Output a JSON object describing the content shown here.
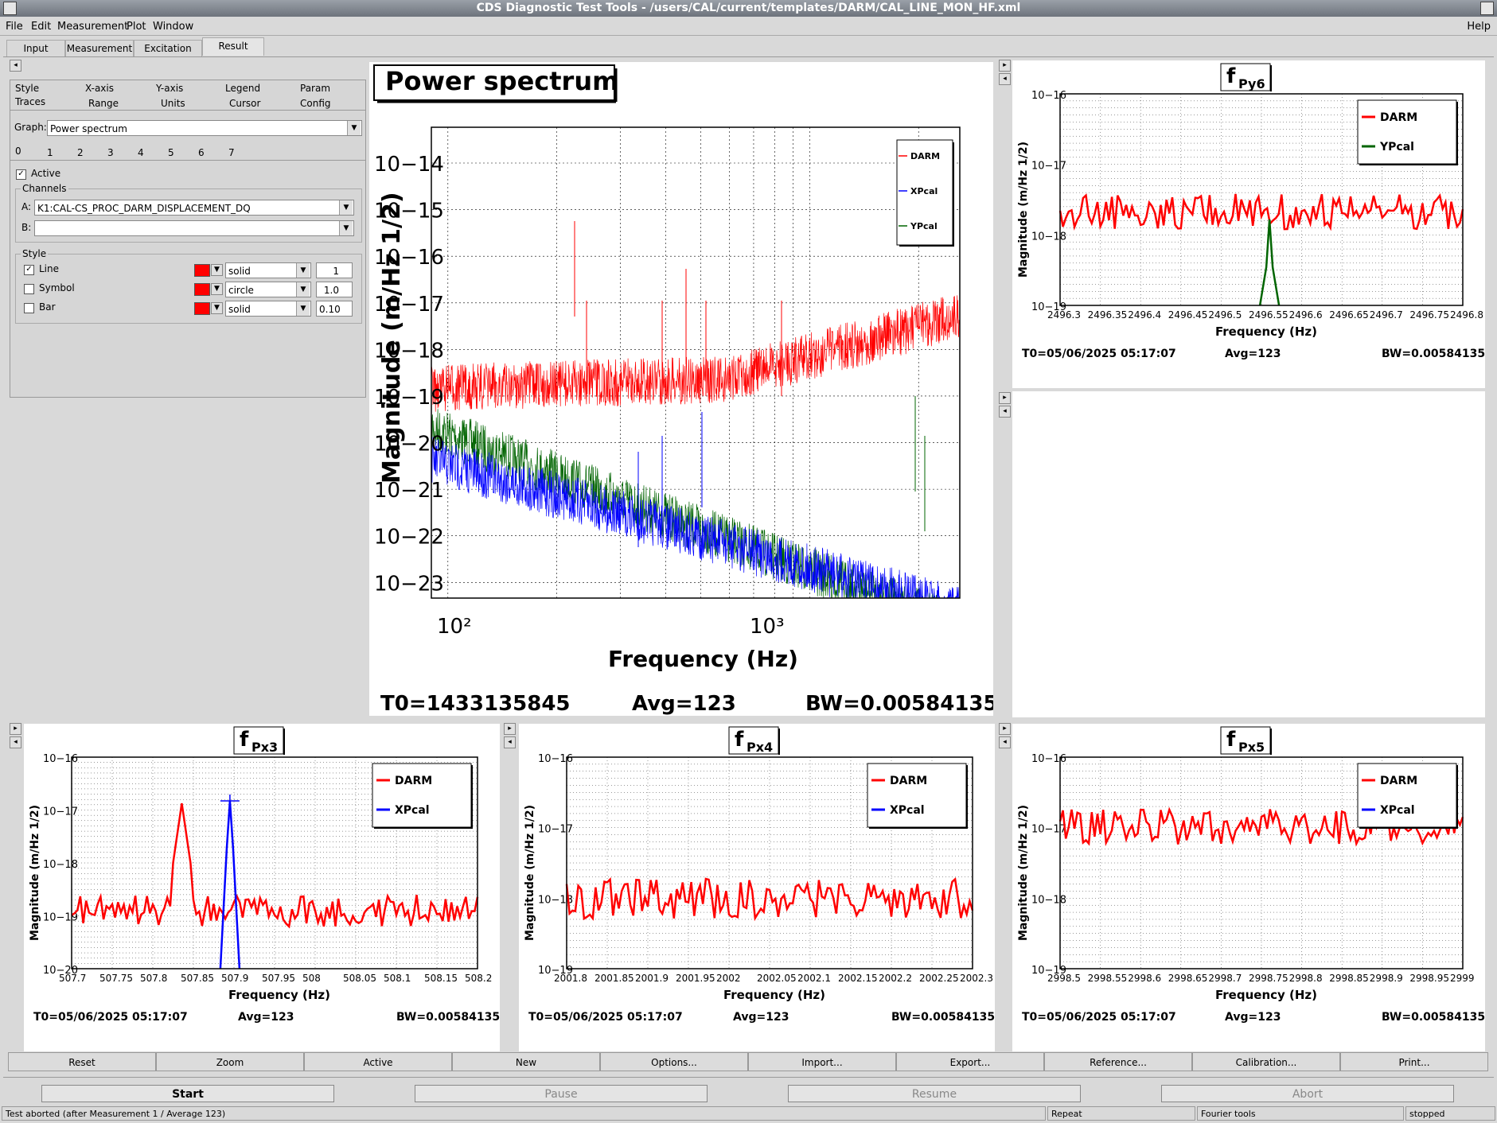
{
  "window": {
    "title": "CDS Diagnostic Test Tools - /users/CAL/current/templates/DARM/CAL_LINE_MON_HF.xml"
  },
  "menu": {
    "items": [
      "File",
      "Edit",
      "Measurement",
      "Plot",
      "Window"
    ],
    "help": "Help"
  },
  "tabs": [
    "Input",
    "Measurement",
    "Excitation",
    "Result"
  ],
  "active_tab": "Result",
  "options": {
    "tabs_row1": [
      "Style",
      "X-axis",
      "Y-axis",
      "Legend",
      "Param"
    ],
    "tabs_row2": [
      "Traces",
      "Range",
      "Units",
      "Cursor",
      "Config"
    ],
    "graph_label": "Graph:",
    "graph_value": "Power spectrum",
    "trace_tabs": [
      "0",
      "1",
      "2",
      "3",
      "4",
      "5",
      "6",
      "7"
    ],
    "active_label": "Active",
    "channels_label": "Channels",
    "channel_a_label": "A:",
    "channel_a": "K1:CAL-CS_PROC_DARM_DISPLACEMENT_DQ",
    "channel_b_label": "B:",
    "channel_b": "",
    "style_label": "Style",
    "rows": [
      {
        "name": "Line",
        "checked": true,
        "style": "solid",
        "value": "1"
      },
      {
        "name": "Symbol",
        "checked": false,
        "style": "circle",
        "value": "1.0"
      },
      {
        "name": "Bar",
        "checked": false,
        "style": "solid",
        "value": "0.10"
      }
    ]
  },
  "main_plot": {
    "title": "Power spectrum",
    "xlabel": "Frequency (Hz)",
    "ylabel": "Magnitude (m/Hz 1/2)",
    "yticks": [
      "10−14",
      "10−15",
      "10−16",
      "10−17",
      "10−18",
      "10−19",
      "10−20",
      "10−21",
      "10−22",
      "10−23"
    ],
    "xticks": [
      "10²",
      "10³"
    ],
    "legend": [
      "DARM",
      "XPcal",
      "YPcal"
    ],
    "t0": "T0=1433135845",
    "avg": "Avg=123",
    "bw": "BW=0.00584135"
  },
  "sub_plots": {
    "py6": {
      "title_main": "f",
      "title_sub": "Py6",
      "yticks": [
        "10−16",
        "10−17",
        "10−18",
        "10−19"
      ],
      "xticks": [
        "2496.3",
        "2496.35",
        "2496.4",
        "2496.45",
        "2496.5",
        "2496.55",
        "2496.6",
        "2496.65",
        "2496.7",
        "2496.75",
        "2496.8"
      ],
      "legend": [
        "DARM",
        "YPcal"
      ],
      "xlabel": "Frequency (Hz)",
      "ylabel": "Magnitude (m/Hz 1/2)",
      "t0": "T0=05/06/2025 05:17:07",
      "avg": "Avg=123",
      "bw": "BW=0.00584135"
    },
    "px3": {
      "title_main": "f",
      "title_sub": "Px3",
      "yticks": [
        "10−16",
        "10−17",
        "10−18",
        "10−19",
        "10−20"
      ],
      "xticks": [
        "507.7",
        "507.75",
        "507.8",
        "507.85",
        "507.9",
        "507.95",
        "508",
        "508.05",
        "508.1",
        "508.15",
        "508.2"
      ],
      "legend": [
        "DARM",
        "XPcal"
      ],
      "xlabel": "Frequency (Hz)",
      "ylabel": "Magnitude (m/Hz 1/2)",
      "t0": "T0=05/06/2025 05:17:07",
      "avg": "Avg=123",
      "bw": "BW=0.00584135"
    },
    "px4": {
      "title_main": "f",
      "title_sub": "Px4",
      "yticks": [
        "10−16",
        "10−17",
        "10−18",
        "10−19"
      ],
      "xticks": [
        "2001.8",
        "2001.85",
        "2001.9",
        "2001.95",
        "2002",
        "2002.05",
        "2002.1",
        "2002.15",
        "2002.2",
        "2002.25",
        "2002.3"
      ],
      "legend": [
        "DARM",
        "XPcal"
      ],
      "xlabel": "Frequency (Hz)",
      "ylabel": "Magnitude (m/Hz 1/2)",
      "t0": "T0=05/06/2025 05:17:07",
      "avg": "Avg=123",
      "bw": "BW=0.00584135"
    },
    "px5": {
      "title_main": "f",
      "title_sub": "Px5",
      "yticks": [
        "10−16",
        "10−17",
        "10−18",
        "10−19"
      ],
      "xticks": [
        "2998.5",
        "2998.55",
        "2998.6",
        "2998.65",
        "2998.7",
        "2998.75",
        "2998.8",
        "2998.85",
        "2998.9",
        "2998.95",
        "2999"
      ],
      "legend": [
        "DARM",
        "XPcal"
      ],
      "xlabel": "Frequency (Hz)",
      "ylabel": "Magnitude (m/Hz 1/2)",
      "t0": "T0=05/06/2025 05:17:07",
      "avg": "Avg=123",
      "bw": "BW=0.00584135"
    }
  },
  "buttons": [
    "Reset",
    "Zoom",
    "Active",
    "New",
    "Options...",
    "Import...",
    "Export...",
    "Reference...",
    "Calibration...",
    "Print..."
  ],
  "controls": [
    "Start",
    "Pause",
    "Resume",
    "Abort"
  ],
  "status": {
    "message": "Test aborted (after Measurement 1 / Average 123)",
    "repeat": "Repeat",
    "tools": "Fourier tools",
    "state": "stopped"
  },
  "colors": {
    "darm": "#ff0000",
    "xpcal": "#0000ff",
    "ypcal": "#006400"
  }
}
